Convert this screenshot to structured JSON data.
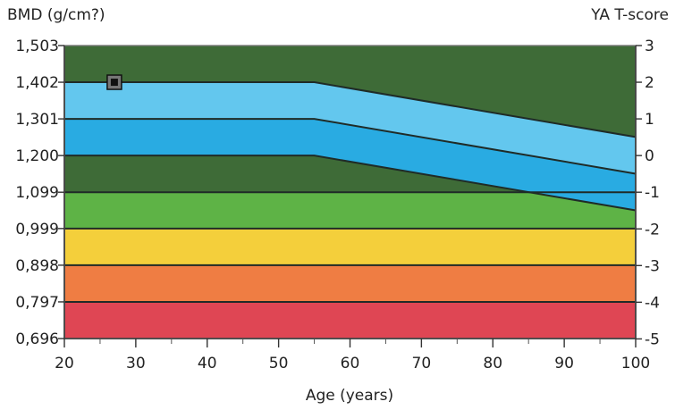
{
  "chart_data": {
    "type": "area",
    "title": "",
    "xlabel": "Age (years)",
    "ylabel_left": "BMD (g/cm?)",
    "ylabel_right": "YA T-score",
    "xlim": [
      20,
      100
    ],
    "ylim": [
      0.696,
      1.503
    ],
    "x_ticks": [
      20,
      30,
      40,
      50,
      60,
      70,
      80,
      90,
      100
    ],
    "y_ticks_left": [
      "1,503",
      "1,402",
      "1,301",
      "1,200",
      "1,099",
      "0,999",
      "0,898",
      "0,797",
      "0,696"
    ],
    "y_tick_values_left": [
      1.503,
      1.402,
      1.301,
      1.2,
      1.099,
      0.999,
      0.898,
      0.797,
      0.696
    ],
    "y_ticks_right": [
      "3",
      "2",
      "1",
      "0",
      "-1",
      "-2",
      "-3",
      "-4",
      "-5"
    ],
    "y_tick_values_right": [
      3,
      2,
      1,
      0,
      -1,
      -2,
      -3,
      -4,
      -5
    ],
    "tscore_to_bmd": {
      "mean_bmd": 1.2,
      "sd_bmd": 0.101
    },
    "colors": {
      "background": "#f7f7f2",
      "plot_dark_green": "#3e6b37",
      "reference_blue": "#29abe2",
      "reference_light_blue": "#63c7ee",
      "green": "#5eb346",
      "yellow": "#f4cf3b",
      "orange": "#ef7d43",
      "red": "#df4654",
      "line": "#1f2b27",
      "marker": "#111111"
    },
    "reference_curves": [
      {
        "x": [
          20,
          55,
          100
        ],
        "y": [
          1.402,
          1.402,
          1.251
        ]
      },
      {
        "x": [
          20,
          55,
          100
        ],
        "y": [
          1.301,
          1.301,
          1.15
        ]
      },
      {
        "x": [
          20,
          55,
          100
        ],
        "y": [
          1.2,
          1.2,
          1.049
        ]
      }
    ],
    "bands": [
      {
        "name": "green",
        "y0": 0.999,
        "y1": 1.099
      },
      {
        "name": "yellow",
        "y0": 0.898,
        "y1": 0.999
      },
      {
        "name": "orange",
        "y0": 0.797,
        "y1": 0.898
      },
      {
        "name": "red",
        "y0": 0.696,
        "y1": 0.797
      }
    ],
    "point": {
      "x": 27,
      "y": 1.402
    }
  }
}
